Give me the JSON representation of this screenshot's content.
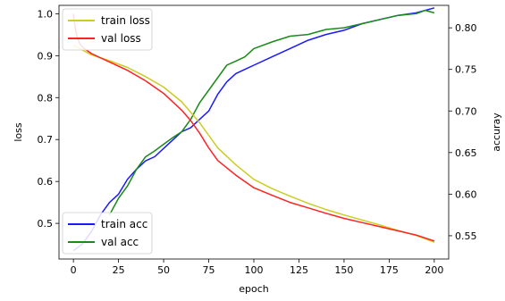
{
  "chart_data": {
    "type": "line",
    "title": "",
    "xlabel": "epoch",
    "ylabel_left": "loss",
    "ylabel_right": "accuray",
    "xlim": [
      -8,
      208
    ],
    "ylim_left": [
      0.415,
      1.02
    ],
    "ylim_right": [
      0.522,
      0.827
    ],
    "xticks": [
      0,
      25,
      50,
      75,
      100,
      125,
      150,
      175,
      200
    ],
    "yticks_left": [
      0.5,
      0.6,
      0.7,
      0.8,
      0.9,
      1.0
    ],
    "yticks_right": [
      0.55,
      0.6,
      0.65,
      0.7,
      0.75,
      0.8
    ],
    "grid": false,
    "legend_top": {
      "position": "upper-left",
      "entries": [
        {
          "label": "train loss",
          "color": "#cccc22"
        },
        {
          "label": "val loss",
          "color": "#ff2222"
        }
      ]
    },
    "legend_bottom": {
      "position": "lower-left",
      "entries": [
        {
          "label": "train acc",
          "color": "#1a1aff"
        },
        {
          "label": "val acc",
          "color": "#1a8a1a"
        }
      ]
    },
    "series": [
      {
        "name": "train loss",
        "axis": "left",
        "color": "#cccc22",
        "x": [
          0,
          10,
          20,
          30,
          40,
          50,
          60,
          65,
          70,
          75,
          80,
          90,
          100,
          110,
          120,
          130,
          140,
          150,
          160,
          170,
          180,
          190,
          200
        ],
        "y": [
          0.925,
          0.902,
          0.888,
          0.872,
          0.85,
          0.825,
          0.79,
          0.765,
          0.74,
          0.71,
          0.68,
          0.64,
          0.605,
          0.583,
          0.565,
          0.548,
          0.533,
          0.52,
          0.508,
          0.496,
          0.483,
          0.471,
          0.455
        ]
      },
      {
        "name": "val loss",
        "axis": "left",
        "color": "#ff2222",
        "x": [
          0,
          1,
          2,
          3,
          4,
          5,
          10,
          20,
          30,
          40,
          50,
          60,
          65,
          70,
          75,
          80,
          90,
          100,
          110,
          120,
          130,
          140,
          150,
          160,
          170,
          180,
          190,
          200
        ],
        "y": [
          1.0,
          0.965,
          0.945,
          0.935,
          0.925,
          0.92,
          0.905,
          0.885,
          0.865,
          0.84,
          0.81,
          0.77,
          0.745,
          0.715,
          0.68,
          0.65,
          0.615,
          0.585,
          0.567,
          0.55,
          0.537,
          0.524,
          0.512,
          0.502,
          0.492,
          0.482,
          0.472,
          0.458
        ]
      },
      {
        "name": "train acc",
        "axis": "right",
        "color": "#1a1aff",
        "x": [
          0,
          5,
          10,
          15,
          20,
          25,
          30,
          35,
          40,
          45,
          50,
          55,
          60,
          65,
          70,
          75,
          80,
          85,
          90,
          95,
          100,
          110,
          120,
          130,
          140,
          150,
          160,
          170,
          180,
          190,
          195,
          200
        ],
        "y": [
          0.532,
          0.54,
          0.555,
          0.575,
          0.59,
          0.6,
          0.618,
          0.63,
          0.64,
          0.645,
          0.655,
          0.665,
          0.675,
          0.68,
          0.69,
          0.7,
          0.72,
          0.735,
          0.745,
          0.75,
          0.755,
          0.765,
          0.775,
          0.785,
          0.792,
          0.797,
          0.805,
          0.81,
          0.815,
          0.818,
          0.821,
          0.824
        ]
      },
      {
        "name": "val acc",
        "axis": "right",
        "color": "#1a8a1a",
        "x": [
          20,
          25,
          30,
          35,
          40,
          45,
          50,
          55,
          60,
          65,
          70,
          75,
          80,
          85,
          90,
          95,
          100,
          110,
          120,
          130,
          140,
          150,
          160,
          170,
          180,
          190,
          195,
          200
        ],
        "y": [
          0.575,
          0.595,
          0.61,
          0.63,
          0.645,
          0.652,
          0.66,
          0.668,
          0.675,
          0.69,
          0.71,
          0.725,
          0.74,
          0.755,
          0.76,
          0.765,
          0.775,
          0.783,
          0.79,
          0.792,
          0.798,
          0.8,
          0.805,
          0.81,
          0.815,
          0.817,
          0.821,
          0.818
        ]
      }
    ]
  }
}
